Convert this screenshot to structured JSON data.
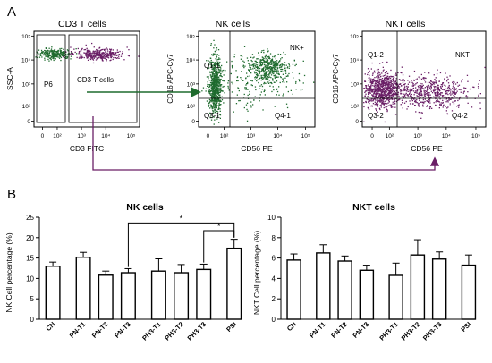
{
  "panel_a": {
    "letter": "A",
    "plots": [
      {
        "title": "CD3 T cells",
        "xlabel": "CD3 FITC",
        "ylabel": "SSC-A",
        "xticks": [
          "0",
          "10²",
          "10³",
          "10⁴",
          "10⁵"
        ],
        "yticks": [
          "10⁵",
          "10⁴",
          "10³",
          "10²",
          "0"
        ],
        "gates": [
          "P6",
          "CD3 T cells"
        ]
      },
      {
        "title": "NK cells",
        "xlabel": "CD56 PE",
        "ylabel": "CD16 APC-Cy7",
        "xticks": [
          "0",
          "10²",
          "10³",
          "10⁴",
          "10⁵"
        ],
        "yticks": [
          "10⁵",
          "10⁴",
          "10³",
          "10²",
          "0"
        ],
        "gates": [
          "NK+",
          "Q1-1",
          "Q3-1",
          "Q4-1"
        ]
      },
      {
        "title": "NKT cells",
        "xlabel": "CD56 PE",
        "ylabel": "CD16 APC-Cy7",
        "xticks": [
          "0",
          "10²",
          "10³",
          "10⁴",
          "10⁵"
        ],
        "yticks": [
          "10⁵",
          "10⁴",
          "10³",
          "10²",
          "0"
        ],
        "gates": [
          "NKT",
          "Q1-2",
          "Q3-2",
          "Q4-2"
        ]
      }
    ],
    "colors": {
      "green": "#1f6b2e",
      "purple": "#6a1f66"
    }
  },
  "panel_b": {
    "letter": "B"
  },
  "chart_data": [
    {
      "type": "bar",
      "title": "NK cells",
      "ylabel": "NK Cell percentage (%)",
      "categories": [
        "CN",
        "PN-T1",
        "PN-T2",
        "PN-T3",
        "PH3-T1",
        "PH3-T2",
        "PH3-T3",
        "PSI"
      ],
      "values": [
        13.0,
        15.2,
        10.8,
        11.4,
        11.8,
        11.4,
        12.2,
        17.4
      ],
      "errors": [
        1.0,
        1.2,
        1.0,
        1.0,
        3.0,
        2.0,
        1.3,
        2.2
      ],
      "yticks": [
        0,
        5,
        10,
        15,
        20,
        25
      ],
      "ylim": [
        0,
        25
      ],
      "significance": [
        {
          "from": "PN-T3",
          "to": "PSI",
          "label": "*"
        },
        {
          "from": "PH3-T3",
          "to": "PSI",
          "label": "*"
        }
      ]
    },
    {
      "type": "bar",
      "title": "NKT cells",
      "ylabel": "NKT Cell percentage (%)",
      "categories": [
        "CN",
        "PN-T1",
        "PN-T2",
        "PN-T3",
        "PH3-T1",
        "PH3-T2",
        "PH3-T3",
        "PSI"
      ],
      "values": [
        5.8,
        6.5,
        5.7,
        4.8,
        4.3,
        6.3,
        5.9,
        5.3
      ],
      "errors": [
        0.6,
        0.8,
        0.5,
        0.5,
        1.2,
        1.5,
        0.7,
        1.0
      ],
      "yticks": [
        0,
        2,
        4,
        6,
        8,
        10
      ],
      "ylim": [
        0,
        10
      ]
    }
  ]
}
